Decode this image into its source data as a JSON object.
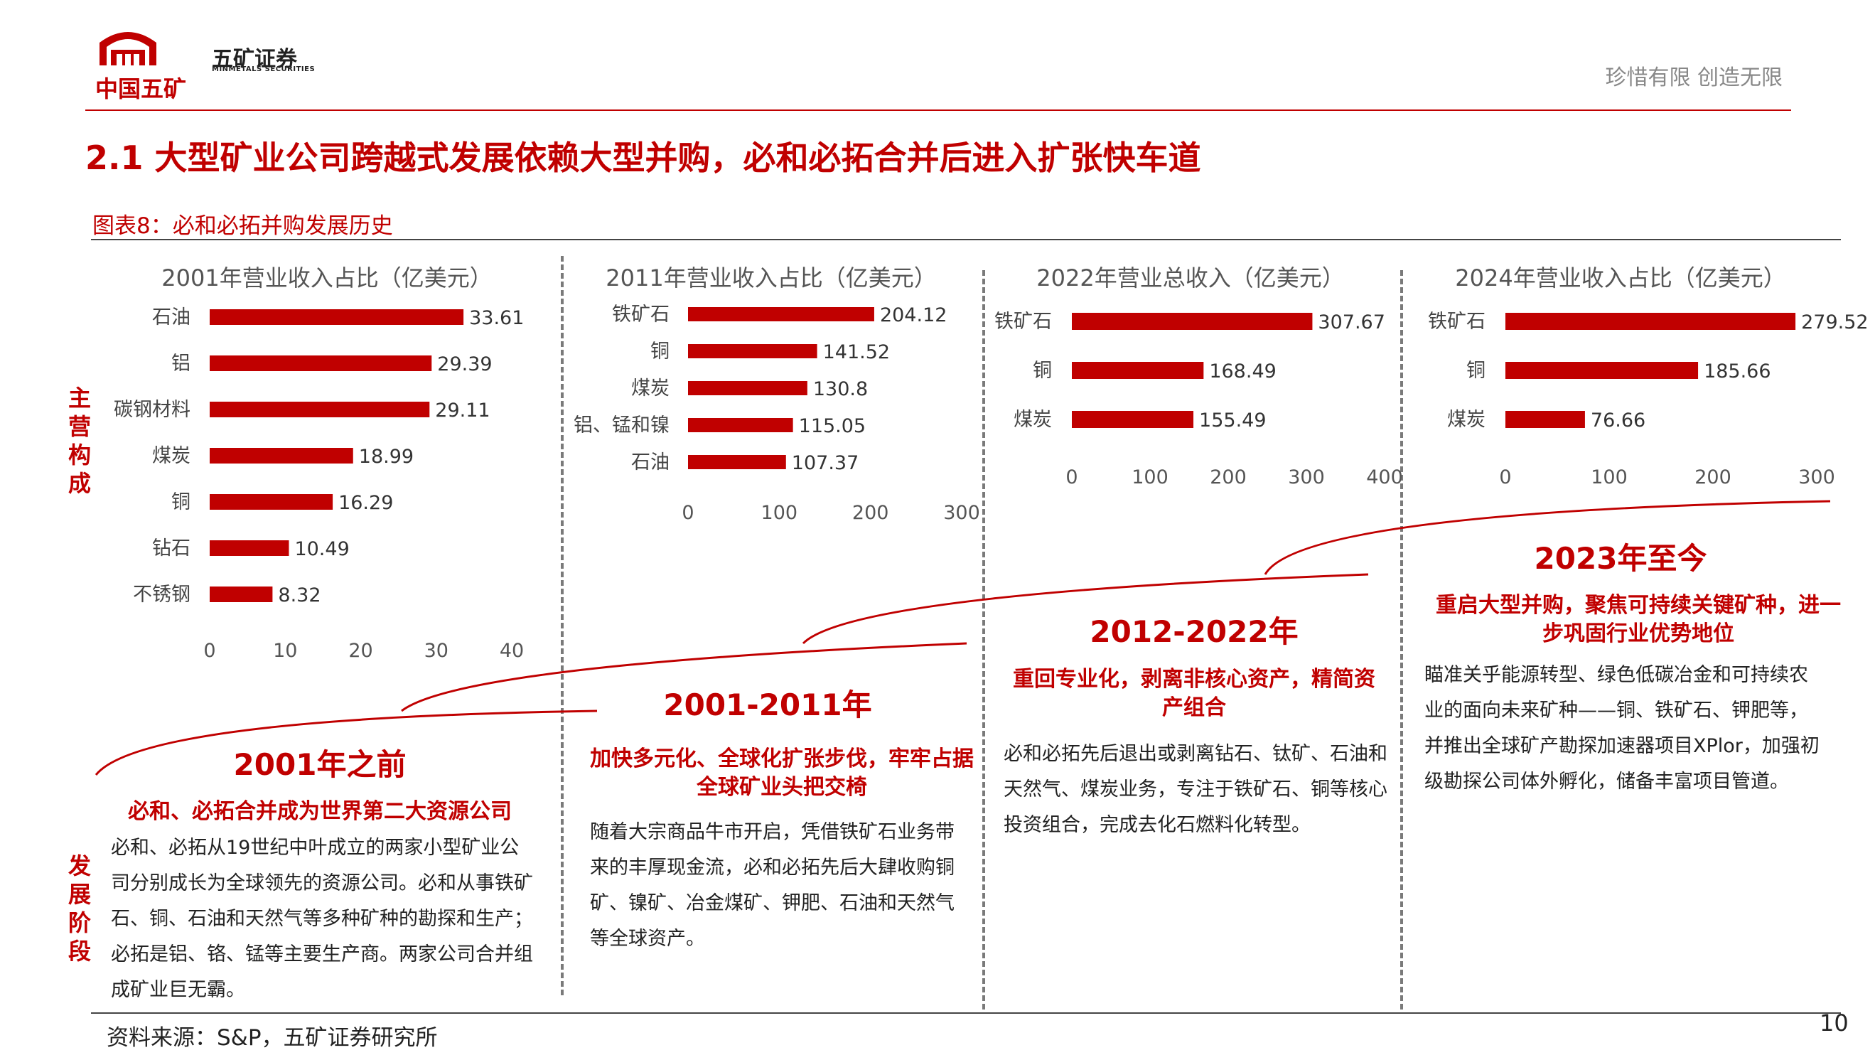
{
  "header": {
    "brand_logo_text": "中国五矿",
    "brand_cn": "五矿证券",
    "brand_en": "MINMETALS SECURITIES",
    "slogan": "珍惜有限  创造无限"
  },
  "title": "2.1 大型矿业公司跨越式发展依赖大型并购，必和必拓合并后进入扩张快车道",
  "figure_label": "图表8：必和必拓并购发展历史",
  "side_labels": {
    "main_business": "主营构成",
    "stages": "发展阶段"
  },
  "chart_data": [
    {
      "type": "bar",
      "orientation": "horizontal",
      "title": "2001年营业收入占比（亿美元）",
      "categories": [
        "石油",
        "铝",
        "碳钢材料",
        "煤炭",
        "铜",
        "钻石",
        "不锈钢"
      ],
      "values": [
        33.61,
        29.39,
        29.11,
        18.99,
        16.29,
        10.49,
        8.32
      ],
      "value_labels": [
        "33.61",
        "29.39",
        "29.11",
        "18.99",
        "16.29",
        "10.49",
        "8.32"
      ],
      "xlim": [
        0,
        40
      ],
      "ticks": [
        "0",
        "10",
        "20",
        "30",
        "40"
      ],
      "color": "#c00000"
    },
    {
      "type": "bar",
      "orientation": "horizontal",
      "title": "2011年营业收入占比（亿美元）",
      "categories": [
        "铁矿石",
        "铜",
        "煤炭",
        "铝、锰和镍",
        "石油"
      ],
      "values": [
        204.12,
        141.52,
        130.8,
        115.05,
        107.37
      ],
      "value_labels": [
        "204.12",
        "141.52",
        "130.8",
        "115.05",
        "107.37"
      ],
      "xlim": [
        0,
        300
      ],
      "ticks": [
        "0",
        "100",
        "200",
        "300"
      ],
      "color": "#c00000"
    },
    {
      "type": "bar",
      "orientation": "horizontal",
      "title": "2022年营业总收入（亿美元）",
      "categories": [
        "铁矿石",
        "铜",
        "煤炭"
      ],
      "values": [
        307.67,
        168.49,
        155.49
      ],
      "value_labels": [
        "307.67",
        "168.49",
        "155.49"
      ],
      "xlim": [
        0,
        400
      ],
      "ticks": [
        "0",
        "100",
        "200",
        "300",
        "400"
      ],
      "color": "#c00000"
    },
    {
      "type": "bar",
      "orientation": "horizontal",
      "title": "2024年营业收入占比（亿美元）",
      "categories": [
        "铁矿石",
        "铜",
        "煤炭"
      ],
      "values": [
        279.52,
        185.66,
        76.66
      ],
      "value_labels": [
        "279.52",
        "185.66",
        "76.66"
      ],
      "xlim": [
        0,
        300
      ],
      "ticks": [
        "0",
        "100",
        "200",
        "300"
      ],
      "color": "#c00000"
    }
  ],
  "stages": [
    {
      "period": "2001年之前",
      "headline": "必和、必拓合并成为世界第二大资源公司",
      "body": "必和、必拓从19世纪中叶成立的两家小型矿业公司分别成长为全球领先的资源公司。必和从事铁矿石、铜、石油和天然气等多种矿种的勘探和生产；必拓是铝、铬、锰等主要生产商。两家公司合并组成矿业巨无霸。"
    },
    {
      "period": "2001-2011年",
      "headline": "加快多元化、全球化扩张步伐，牢牢占据全球矿业头把交椅",
      "body": "随着大宗商品牛市开启，凭借铁矿石业务带来的丰厚现金流，必和必拓先后大肆收购铜矿、镍矿、冶金煤矿、钾肥、石油和天然气等全球资产。"
    },
    {
      "period": "2012-2022年",
      "headline": "重回专业化，剥离非核心资产，精简资产组合",
      "body": "必和必拓先后退出或剥离钻石、钛矿、石油和天然气、煤炭业务，专注于铁矿石、铜等核心投资组合，完成去化石燃料化转型。"
    },
    {
      "period": "2023年至今",
      "headline": "重启大型并购，聚焦可持续关键矿种，进一步巩固行业优势地位",
      "body": "瞄准关乎能源转型、绿色低碳冶金和可持续农业的面向未来矿种——铜、铁矿石、钾肥等，并推出全球矿产勘探加速器项目XPlor，加强初级勘探公司体外孵化，储备丰富项目管道。"
    }
  ],
  "source": "资料来源：S&P，五矿证券研究所",
  "page_number": "10"
}
